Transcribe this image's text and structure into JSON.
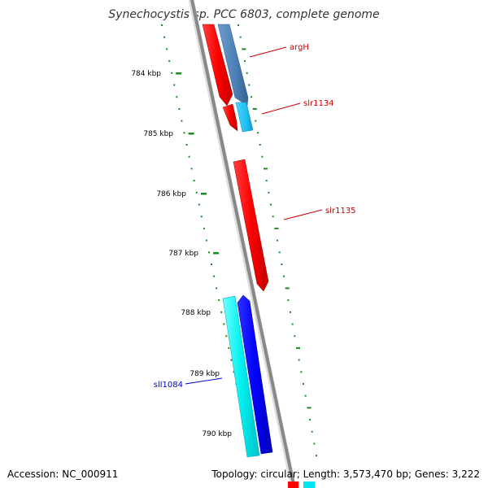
{
  "header": {
    "title": "Synechocystis sp. PCC 6803, complete genome"
  },
  "footer": {
    "accession": "Accession: NC_000911",
    "summary": "Topology: circular; Length: 3,573,470 bp; Genes: 3,222"
  },
  "ruler": {
    "ticks": [
      {
        "label": "784 kbp"
      },
      {
        "label": "785 kbp"
      },
      {
        "label": "786 kbp"
      },
      {
        "label": "787 kbp"
      },
      {
        "label": "788 kbp"
      },
      {
        "label": "789 kbp"
      },
      {
        "label": "790 kbp"
      }
    ]
  },
  "genes": [
    {
      "name": "argH",
      "color": "#cc0000"
    },
    {
      "name": "slr1134",
      "color": "#cc0000"
    },
    {
      "name": "slr1135",
      "color": "#cc0000"
    },
    {
      "name": "sll1084",
      "color": "#0000cc"
    }
  ],
  "colors": {
    "forward_cds": "#ff0000",
    "forward_gene": "#4a7fb5",
    "forward_gene_light": "#1ec0f0",
    "reverse_cds": "#0000ff",
    "reverse_gene": "#00f0f0",
    "backbone": "#888888",
    "ruler": "#1a8a1a"
  }
}
